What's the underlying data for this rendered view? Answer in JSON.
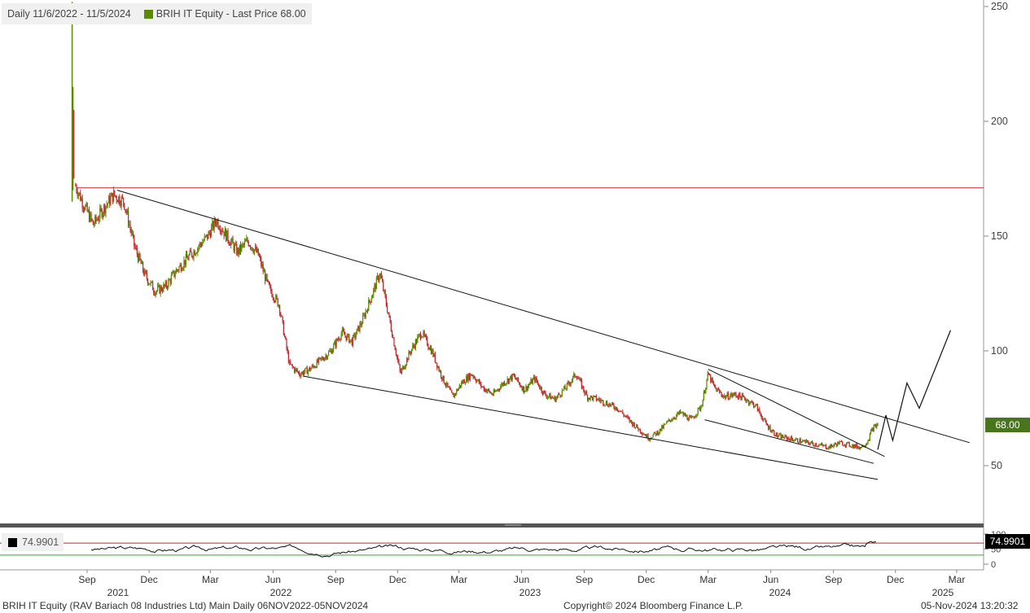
{
  "legend": {
    "period": "Daily 11/6/2022 - 11/5/2024",
    "series": "BRIH IT Equity - Last Price 68.00",
    "series_color": "#5a8a00"
  },
  "price_tag": "68.00",
  "rsi_legend": "74.9901",
  "rsi_tag": "74.9901",
  "footer": {
    "left": "BRIH IT Equity (RAV Bariach 08 Industries Ltd)  Main   Daily 06NOV2022-05NOV2024",
    "center": "Copyright© 2024 Bloomberg Finance L.P.",
    "right": "05-Nov-2024 13:20:32"
  },
  "colors": {
    "up": "#5a8a00",
    "down": "#c1272d",
    "trendline": "#111111",
    "horizontal_line": "#c1272d",
    "rsi_upper": "#c1272d",
    "rsi_lower": "#33aa33",
    "price_tag_bg": "#49761d"
  },
  "chart_data": [
    {
      "type": "candlestick",
      "title": "BRIH IT Equity - Last Price 68.00",
      "y_axis": {
        "position": "right",
        "ticks": [
          50,
          100,
          150,
          200,
          250
        ],
        "range": [
          25,
          252
        ]
      },
      "x_axis": {
        "month_labels": [
          "Sep",
          "Dec",
          "Mar",
          "Jun",
          "Sep",
          "Dec",
          "Mar",
          "Jun",
          "Sep",
          "Dec",
          "Mar",
          "Jun",
          "Sep",
          "Dec",
          "Mar"
        ],
        "year_labels": [
          "2021",
          "2022",
          "2023",
          "2024",
          "2025"
        ]
      },
      "close_path": [
        {
          "d": "2021-08-15",
          "c": 172
        },
        {
          "d": "2021-08-25",
          "c": 165
        },
        {
          "d": "2021-09-10",
          "c": 155
        },
        {
          "d": "2021-09-25",
          "c": 162
        },
        {
          "d": "2021-10-10",
          "c": 168
        },
        {
          "d": "2021-10-25",
          "c": 165
        },
        {
          "d": "2021-11-10",
          "c": 145
        },
        {
          "d": "2021-11-25",
          "c": 133
        },
        {
          "d": "2021-12-10",
          "c": 126
        },
        {
          "d": "2021-12-25",
          "c": 128
        },
        {
          "d": "2022-01-10",
          "c": 135
        },
        {
          "d": "2022-01-25",
          "c": 140
        },
        {
          "d": "2022-02-10",
          "c": 145
        },
        {
          "d": "2022-02-25",
          "c": 150
        },
        {
          "d": "2022-03-10",
          "c": 157
        },
        {
          "d": "2022-03-25",
          "c": 150
        },
        {
          "d": "2022-04-10",
          "c": 143
        },
        {
          "d": "2022-04-25",
          "c": 148
        },
        {
          "d": "2022-05-10",
          "c": 142
        },
        {
          "d": "2022-05-25",
          "c": 128
        },
        {
          "d": "2022-06-10",
          "c": 120
        },
        {
          "d": "2022-06-25",
          "c": 94
        },
        {
          "d": "2022-07-10",
          "c": 90
        },
        {
          "d": "2022-07-25",
          "c": 92
        },
        {
          "d": "2022-08-10",
          "c": 96
        },
        {
          "d": "2022-08-25",
          "c": 100
        },
        {
          "d": "2022-09-10",
          "c": 108
        },
        {
          "d": "2022-09-25",
          "c": 104
        },
        {
          "d": "2022-10-10",
          "c": 113
        },
        {
          "d": "2022-10-25",
          "c": 125
        },
        {
          "d": "2022-11-05",
          "c": 134
        },
        {
          "d": "2022-11-20",
          "c": 112
        },
        {
          "d": "2022-12-05",
          "c": 90
        },
        {
          "d": "2022-12-20",
          "c": 100
        },
        {
          "d": "2023-01-05",
          "c": 108
        },
        {
          "d": "2023-01-20",
          "c": 100
        },
        {
          "d": "2023-02-05",
          "c": 88
        },
        {
          "d": "2023-02-20",
          "c": 80
        },
        {
          "d": "2023-03-05",
          "c": 86
        },
        {
          "d": "2023-03-20",
          "c": 90
        },
        {
          "d": "2023-04-05",
          "c": 84
        },
        {
          "d": "2023-04-20",
          "c": 81
        },
        {
          "d": "2023-05-05",
          "c": 86
        },
        {
          "d": "2023-05-20",
          "c": 89
        },
        {
          "d": "2023-06-05",
          "c": 83
        },
        {
          "d": "2023-06-20",
          "c": 88
        },
        {
          "d": "2023-07-05",
          "c": 81
        },
        {
          "d": "2023-07-20",
          "c": 79
        },
        {
          "d": "2023-08-05",
          "c": 84
        },
        {
          "d": "2023-08-20",
          "c": 90
        },
        {
          "d": "2023-09-05",
          "c": 80
        },
        {
          "d": "2023-09-20",
          "c": 79
        },
        {
          "d": "2023-10-05",
          "c": 77
        },
        {
          "d": "2023-10-20",
          "c": 75
        },
        {
          "d": "2023-11-05",
          "c": 70
        },
        {
          "d": "2023-11-20",
          "c": 66
        },
        {
          "d": "2023-12-05",
          "c": 62
        },
        {
          "d": "2023-12-20",
          "c": 65
        },
        {
          "d": "2024-01-05",
          "c": 70
        },
        {
          "d": "2024-01-20",
          "c": 73
        },
        {
          "d": "2024-02-05",
          "c": 70
        },
        {
          "d": "2024-02-20",
          "c": 76
        },
        {
          "d": "2024-03-01",
          "c": 90
        },
        {
          "d": "2024-03-10",
          "c": 84
        },
        {
          "d": "2024-03-25",
          "c": 80
        },
        {
          "d": "2024-04-10",
          "c": 81
        },
        {
          "d": "2024-04-25",
          "c": 79
        },
        {
          "d": "2024-05-10",
          "c": 76
        },
        {
          "d": "2024-05-25",
          "c": 68
        },
        {
          "d": "2024-06-10",
          "c": 63
        },
        {
          "d": "2024-06-25",
          "c": 62
        },
        {
          "d": "2024-07-10",
          "c": 61
        },
        {
          "d": "2024-07-25",
          "c": 60
        },
        {
          "d": "2024-08-10",
          "c": 59
        },
        {
          "d": "2024-08-25",
          "c": 58
        },
        {
          "d": "2024-09-10",
          "c": 60
        },
        {
          "d": "2024-09-25",
          "c": 59
        },
        {
          "d": "2024-10-10",
          "c": 58
        },
        {
          "d": "2024-10-20",
          "c": 60
        },
        {
          "d": "2024-10-28",
          "c": 66
        },
        {
          "d": "2024-11-05",
          "c": 68
        }
      ],
      "ipo_spike": {
        "d": "2021-08-10",
        "low": 165,
        "high": 252
      },
      "trendlines": [
        [
          {
            "d": "2021-10-15",
            "v": 170
          },
          {
            "d": "2025-03-20",
            "v": 60
          }
        ],
        [
          {
            "d": "2022-07-15",
            "v": 89
          },
          {
            "d": "2024-11-05",
            "v": 44
          }
        ],
        [
          {
            "d": "2024-02-25",
            "v": 70
          },
          {
            "d": "2024-10-30",
            "v": 51
          }
        ],
        [
          {
            "d": "2024-03-01",
            "v": 92
          },
          {
            "d": "2024-11-15",
            "v": 54
          }
        ]
      ],
      "horizontal_line": 171,
      "projection": [
        {
          "d": "2024-11-05",
          "v": 57
        },
        {
          "d": "2024-11-17",
          "v": 72
        },
        {
          "d": "2024-11-27",
          "v": 61
        },
        {
          "d": "2024-12-18",
          "v": 86
        },
        {
          "d": "2025-01-05",
          "v": 75
        },
        {
          "d": "2025-02-20",
          "v": 109
        }
      ]
    },
    {
      "type": "line",
      "title": "RSI",
      "y_axis": {
        "ticks": [
          0,
          50,
          100
        ]
      },
      "current": 74.9901,
      "upper_band": 70,
      "lower_band": 30
    }
  ]
}
